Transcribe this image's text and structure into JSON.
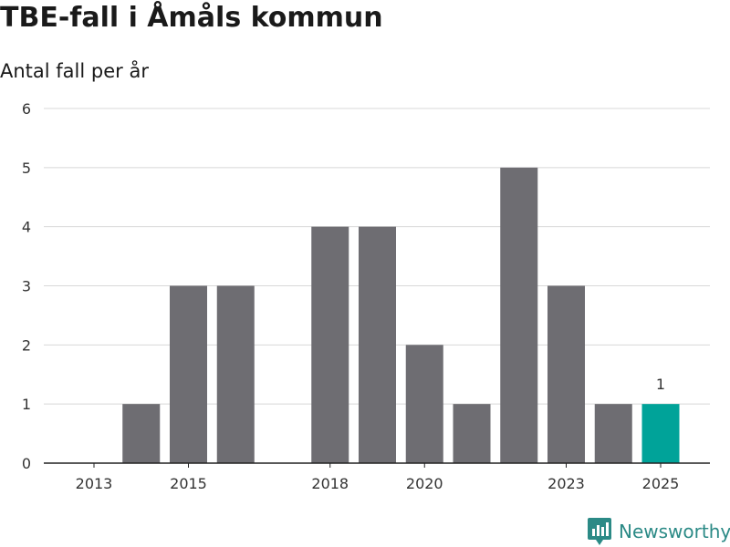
{
  "header": {
    "title": "TBE-fall i Åmåls kommun",
    "subtitle": "Antal fall per år"
  },
  "brand": {
    "name": "Newsworthy",
    "color": "#2b8a86"
  },
  "colors": {
    "bar": "#6e6d72",
    "highlight": "#00a399",
    "grid": "#d8d8d8",
    "axis": "#222222"
  },
  "chart_data": {
    "type": "bar",
    "title": "TBE-fall i Åmåls kommun",
    "subtitle": "Antal fall per år",
    "xlabel": "",
    "ylabel": "",
    "categories": [
      "2013",
      "2014",
      "2015",
      "2016",
      "2017",
      "2018",
      "2019",
      "2020",
      "2021",
      "2022",
      "2023",
      "2024",
      "2025"
    ],
    "x_tick_labels": [
      "2013",
      "2015",
      "2018",
      "2020",
      "2023",
      "2025"
    ],
    "values": [
      0,
      1,
      3,
      3,
      0,
      4,
      4,
      2,
      1,
      5,
      3,
      1,
      1
    ],
    "highlight_index": 12,
    "data_labels": [
      {
        "category": "2025",
        "text": "1"
      }
    ],
    "ylim": [
      0,
      6
    ],
    "yticks": [
      0,
      1,
      2,
      3,
      4,
      5,
      6
    ],
    "grid": true,
    "legend": "none"
  }
}
